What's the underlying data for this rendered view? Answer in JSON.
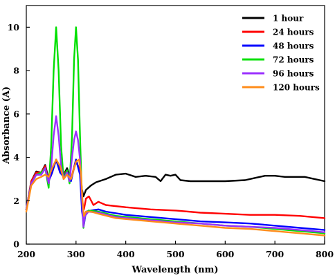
{
  "chart_data": {
    "type": "line",
    "xlabel": "Wavelength (nm)",
    "ylabel": "Absorbance (A)",
    "xlim": [
      200,
      800
    ],
    "ylim": [
      0,
      11
    ],
    "x_ticks": [
      200,
      300,
      400,
      500,
      600,
      700,
      800
    ],
    "y_ticks": [
      0,
      2,
      4,
      6,
      8,
      10
    ],
    "grid": false,
    "legend_position": "top-right",
    "series": [
      {
        "name": "1 hour",
        "color": "#000000",
        "points": [
          [
            200,
            1.6
          ],
          [
            210,
            2.9
          ],
          [
            220,
            3.35
          ],
          [
            230,
            3.3
          ],
          [
            238,
            3.65
          ],
          [
            245,
            3.0
          ],
          [
            252,
            3.4
          ],
          [
            260,
            3.85
          ],
          [
            268,
            3.4
          ],
          [
            275,
            3.2
          ],
          [
            282,
            3.5
          ],
          [
            290,
            3.0
          ],
          [
            300,
            3.8
          ],
          [
            308,
            3.4
          ],
          [
            312,
            2.5
          ],
          [
            315,
            2.2
          ],
          [
            320,
            2.5
          ],
          [
            330,
            2.7
          ],
          [
            340,
            2.85
          ],
          [
            360,
            3.0
          ],
          [
            380,
            3.2
          ],
          [
            400,
            3.25
          ],
          [
            420,
            3.1
          ],
          [
            440,
            3.15
          ],
          [
            460,
            3.1
          ],
          [
            470,
            2.9
          ],
          [
            480,
            3.2
          ],
          [
            490,
            3.15
          ],
          [
            500,
            3.2
          ],
          [
            510,
            2.95
          ],
          [
            530,
            2.9
          ],
          [
            560,
            2.9
          ],
          [
            600,
            2.9
          ],
          [
            640,
            2.95
          ],
          [
            660,
            3.05
          ],
          [
            680,
            3.15
          ],
          [
            700,
            3.15
          ],
          [
            720,
            3.1
          ],
          [
            740,
            3.1
          ],
          [
            760,
            3.1
          ],
          [
            780,
            3.0
          ],
          [
            800,
            2.9
          ]
        ]
      },
      {
        "name": "24 hours",
        "color": "#ff0000",
        "points": [
          [
            200,
            1.6
          ],
          [
            210,
            2.9
          ],
          [
            220,
            3.3
          ],
          [
            230,
            3.3
          ],
          [
            238,
            3.6
          ],
          [
            245,
            2.9
          ],
          [
            252,
            3.3
          ],
          [
            260,
            3.9
          ],
          [
            268,
            3.3
          ],
          [
            275,
            3.2
          ],
          [
            282,
            3.4
          ],
          [
            290,
            3.0
          ],
          [
            300,
            3.9
          ],
          [
            308,
            3.3
          ],
          [
            312,
            2.0
          ],
          [
            316,
            1.6
          ],
          [
            320,
            2.1
          ],
          [
            326,
            2.2
          ],
          [
            335,
            1.8
          ],
          [
            345,
            1.95
          ],
          [
            360,
            1.8
          ],
          [
            400,
            1.7
          ],
          [
            450,
            1.6
          ],
          [
            500,
            1.55
          ],
          [
            550,
            1.45
          ],
          [
            600,
            1.4
          ],
          [
            650,
            1.35
          ],
          [
            700,
            1.35
          ],
          [
            750,
            1.3
          ],
          [
            800,
            1.2
          ]
        ]
      },
      {
        "name": "48 hours",
        "color": "#0000ff",
        "points": [
          [
            200,
            1.6
          ],
          [
            210,
            2.8
          ],
          [
            220,
            3.2
          ],
          [
            230,
            3.2
          ],
          [
            238,
            3.5
          ],
          [
            245,
            2.9
          ],
          [
            252,
            3.3
          ],
          [
            260,
            3.9
          ],
          [
            268,
            3.3
          ],
          [
            275,
            3.1
          ],
          [
            282,
            3.4
          ],
          [
            290,
            2.9
          ],
          [
            300,
            3.9
          ],
          [
            308,
            3.2
          ],
          [
            312,
            1.5
          ],
          [
            316,
            0.9
          ],
          [
            320,
            1.5
          ],
          [
            330,
            1.55
          ],
          [
            345,
            1.6
          ],
          [
            360,
            1.5
          ],
          [
            400,
            1.35
          ],
          [
            450,
            1.25
          ],
          [
            500,
            1.15
          ],
          [
            550,
            1.05
          ],
          [
            600,
            1.0
          ],
          [
            650,
            0.95
          ],
          [
            700,
            0.85
          ],
          [
            750,
            0.75
          ],
          [
            800,
            0.65
          ]
        ]
      },
      {
        "name": "72 hours",
        "color": "#00e000",
        "points": [
          [
            200,
            1.6
          ],
          [
            210,
            2.8
          ],
          [
            220,
            3.2
          ],
          [
            230,
            3.3
          ],
          [
            238,
            3.5
          ],
          [
            245,
            2.6
          ],
          [
            250,
            4.5
          ],
          [
            255,
            8.0
          ],
          [
            260,
            10.0
          ],
          [
            265,
            8.0
          ],
          [
            270,
            4.5
          ],
          [
            275,
            3.0
          ],
          [
            282,
            3.4
          ],
          [
            287,
            2.8
          ],
          [
            292,
            5.0
          ],
          [
            296,
            8.5
          ],
          [
            300,
            10.0
          ],
          [
            304,
            8.5
          ],
          [
            308,
            5.0
          ],
          [
            312,
            2.0
          ],
          [
            315,
            0.75
          ],
          [
            318,
            1.3
          ],
          [
            325,
            1.55
          ],
          [
            345,
            1.5
          ],
          [
            380,
            1.3
          ],
          [
            450,
            1.15
          ],
          [
            500,
            1.05
          ],
          [
            550,
            0.95
          ],
          [
            600,
            0.85
          ],
          [
            650,
            0.8
          ],
          [
            700,
            0.7
          ],
          [
            750,
            0.6
          ],
          [
            800,
            0.5
          ]
        ]
      },
      {
        "name": "96 hours",
        "color": "#9b30ff",
        "points": [
          [
            200,
            1.6
          ],
          [
            210,
            2.8
          ],
          [
            220,
            3.2
          ],
          [
            230,
            3.2
          ],
          [
            238,
            3.5
          ],
          [
            245,
            2.8
          ],
          [
            250,
            3.5
          ],
          [
            255,
            5.0
          ],
          [
            260,
            5.9
          ],
          [
            265,
            5.0
          ],
          [
            270,
            3.6
          ],
          [
            275,
            3.0
          ],
          [
            282,
            3.3
          ],
          [
            287,
            2.9
          ],
          [
            292,
            4.0
          ],
          [
            296,
            4.8
          ],
          [
            300,
            5.2
          ],
          [
            304,
            4.8
          ],
          [
            308,
            3.9
          ],
          [
            312,
            2.0
          ],
          [
            315,
            0.8
          ],
          [
            318,
            1.3
          ],
          [
            325,
            1.5
          ],
          [
            345,
            1.45
          ],
          [
            380,
            1.25
          ],
          [
            450,
            1.1
          ],
          [
            500,
            1.0
          ],
          [
            550,
            0.95
          ],
          [
            600,
            0.85
          ],
          [
            650,
            0.8
          ],
          [
            700,
            0.75
          ],
          [
            750,
            0.65
          ],
          [
            800,
            0.55
          ]
        ]
      },
      {
        "name": "120 hours",
        "color": "#ff8c1a",
        "points": [
          [
            200,
            1.5
          ],
          [
            210,
            2.7
          ],
          [
            220,
            3.0
          ],
          [
            230,
            3.1
          ],
          [
            238,
            3.2
          ],
          [
            245,
            3.1
          ],
          [
            252,
            3.5
          ],
          [
            260,
            3.9
          ],
          [
            268,
            3.6
          ],
          [
            275,
            3.0
          ],
          [
            282,
            3.2
          ],
          [
            290,
            3.0
          ],
          [
            300,
            3.8
          ],
          [
            306,
            3.9
          ],
          [
            310,
            3.3
          ],
          [
            313,
            2.0
          ],
          [
            316,
            1.3
          ],
          [
            320,
            1.5
          ],
          [
            330,
            1.5
          ],
          [
            345,
            1.4
          ],
          [
            380,
            1.2
          ],
          [
            450,
            1.05
          ],
          [
            500,
            0.95
          ],
          [
            550,
            0.85
          ],
          [
            600,
            0.75
          ],
          [
            650,
            0.7
          ],
          [
            700,
            0.6
          ],
          [
            750,
            0.5
          ],
          [
            800,
            0.4
          ]
        ]
      }
    ]
  }
}
